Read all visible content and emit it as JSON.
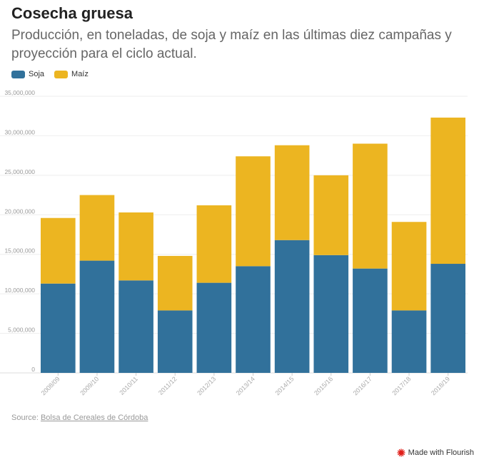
{
  "header": {
    "title": "Cosecha gruesa",
    "subtitle": "Producción, en toneladas, de soja y maíz en las últimas diez campañas y proyección para el ciclo actual."
  },
  "legend": {
    "items": [
      {
        "label": "Soja",
        "color": "#31719b"
      },
      {
        "label": "Maíz",
        "color": "#ecb521"
      }
    ]
  },
  "footer": {
    "source_prefix": "Source: ",
    "source_link": "Bolsa de Cereales de Córdoba",
    "flourish_label": "Made with Flourish",
    "flourish_icon_color": "#e0201b"
  },
  "chart_data": {
    "type": "bar",
    "stacked": true,
    "categories": [
      "2008/09",
      "2009/10",
      "2010/11",
      "2011/12",
      "2012/13",
      "2013/14",
      "2014/15",
      "2015/16",
      "2016/17",
      "2017/18",
      "2018/19"
    ],
    "series": [
      {
        "name": "Soja",
        "color": "#31719b",
        "values": [
          11300000,
          14200000,
          11700000,
          7900000,
          11400000,
          13500000,
          16800000,
          14900000,
          13200000,
          7900000,
          13800000
        ]
      },
      {
        "name": "Maíz",
        "color": "#ecb521",
        "values": [
          8300000,
          8300000,
          8600000,
          6900000,
          9800000,
          13900000,
          12000000,
          10100000,
          15800000,
          11200000,
          18500000
        ]
      }
    ],
    "ylim": [
      0,
      35000000
    ],
    "yticks": [
      0,
      5000000,
      10000000,
      15000000,
      20000000,
      25000000,
      30000000,
      35000000
    ],
    "ytick_labels": [
      "0",
      "5,000,000",
      "10,000,000",
      "15,000,000",
      "20,000,000",
      "25,000,000",
      "30,000,000",
      "35,000,000"
    ],
    "xlabel": "",
    "ylabel": "",
    "grid": true,
    "legend_position": "top-left"
  }
}
